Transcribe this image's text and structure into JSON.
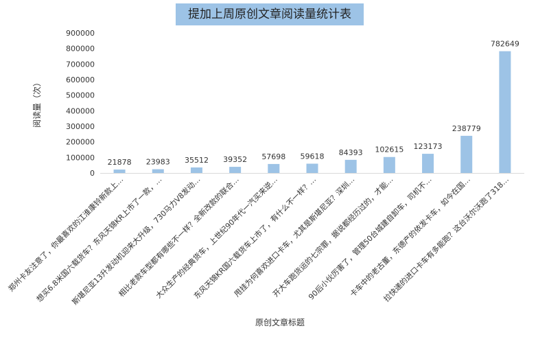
{
  "chart_data": {
    "type": "bar",
    "title": "提加上周原创文章阅读量统计表",
    "xlabel": "原创文章标题",
    "ylabel": "阅读量（次）",
    "ylim": [
      0,
      900000
    ],
    "yticks": [
      "0",
      "100000",
      "200000",
      "300000",
      "400000",
      "500000",
      "600000",
      "700000",
      "800000",
      "900000"
    ],
    "grid": false,
    "bar_color": "#9dc3e6",
    "categories": [
      "郑州卡友注意了，你最喜欢的江淮康铃新款上…",
      "想买6.8米国六载货车？东风天锦KR上市了一款，…",
      "斯堪尼亚13升发动机迎来大升级，730马力V8发动…",
      "相比老款车型都有哪些不一样？全新改款的联合…",
      "大众生产的经典货车，上世纪90年代一汽买来逆…",
      "东风天锦KR国六载货车上市了，有什么不一样？…",
      "甩挂为何喜欢进口卡车，尤其是斯堪尼亚？深圳…",
      "开大车跑货运的七宗罪，据说都经历过的，才能…",
      "90后小伙厉害了，管理50台城建自卸车，司机不…",
      "卡车中的老古董，东德产的依发卡车，如今在国…",
      "拉快递的进口卡车有多能跑？这台沃尔沃跑了318…"
    ],
    "values": [
      21878,
      23983,
      35512,
      39352,
      57698,
      59618,
      84393,
      102615,
      123173,
      238779,
      782649
    ],
    "labels": [
      "21878",
      "23983",
      "35512",
      "39352",
      "57698",
      "59618",
      "84393",
      "102615",
      "123173",
      "238779",
      "782649"
    ]
  }
}
